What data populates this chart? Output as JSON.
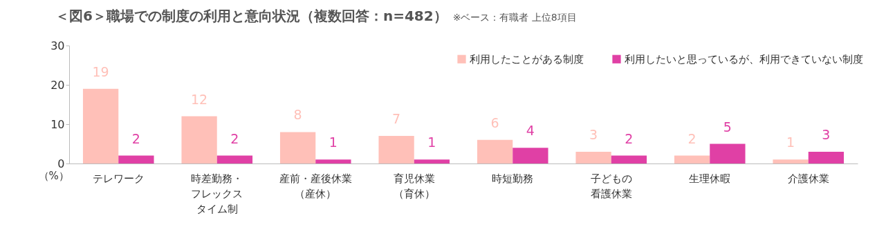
{
  "chart_data": {
    "type": "bar",
    "title": "＜図6＞職場での制度の利用と意向状況（複数回答：n=482）",
    "subtitle": "※ベース：有職者 上位8項目",
    "ylabel": "（%）",
    "categories": [
      "テレワーク",
      "時差勤務・フレックスタイム制",
      "産前・産後休業（産休）",
      "育児休業（育休）",
      "時短勤務",
      "子どもの看護休業",
      "生理休暇",
      "介護休業"
    ],
    "series": [
      {
        "name": "利用したことがある制度",
        "color": "#ffc0b8",
        "values": [
          19,
          12,
          8,
          7,
          6,
          3,
          2,
          1
        ]
      },
      {
        "name": "利用したいと思っているが、利用できていない制度",
        "color": "#e040a5",
        "values": [
          2,
          2,
          1,
          1,
          4,
          2,
          5,
          3
        ]
      }
    ],
    "ylim": [
      0,
      30
    ],
    "yticks": [
      0,
      10,
      20,
      30
    ],
    "grid": false,
    "legend": "top right",
    "data_labels": true
  }
}
